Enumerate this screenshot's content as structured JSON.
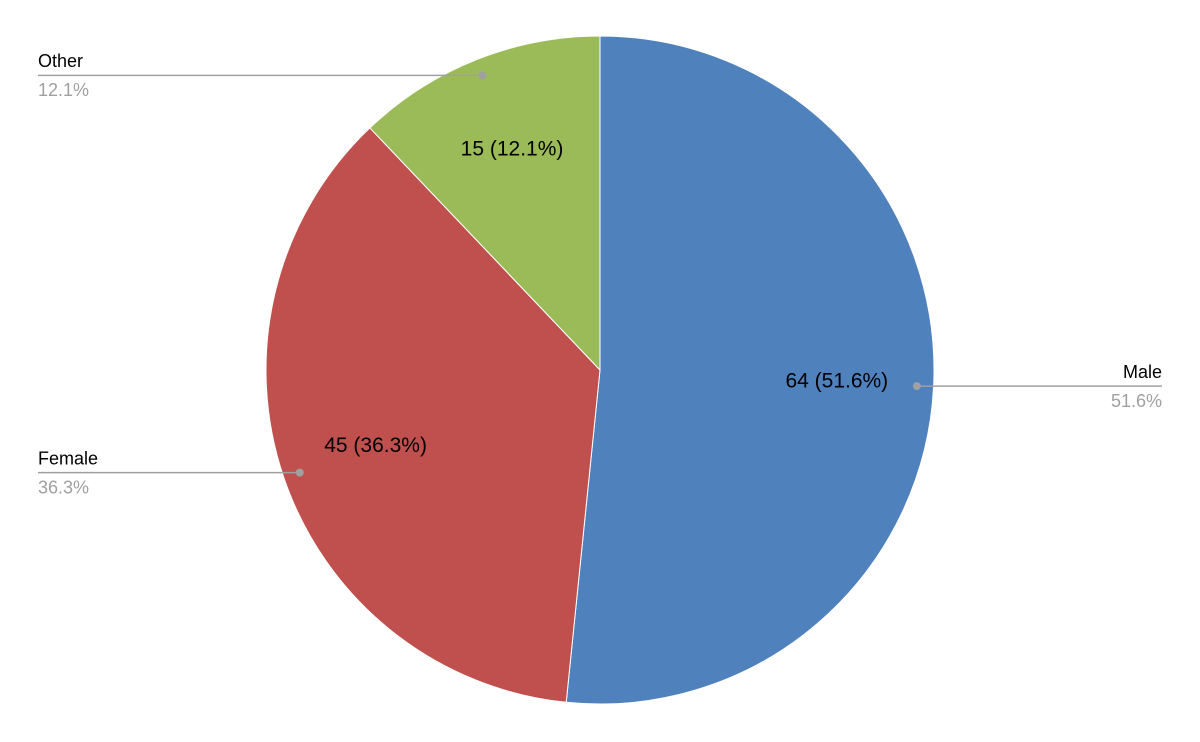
{
  "chart_data": {
    "type": "pie",
    "categories": [
      "Male",
      "Female",
      "Other"
    ],
    "values": [
      64,
      45,
      15
    ],
    "value_labels": [
      "64 (51.6%)",
      "45 (36.3%)",
      "15 (12.1%)"
    ],
    "percent_labels": [
      "51.6%",
      "36.3%",
      "12.1%"
    ],
    "colors": [
      "#4f81bd",
      "#c0504d",
      "#9bbb59"
    ]
  }
}
